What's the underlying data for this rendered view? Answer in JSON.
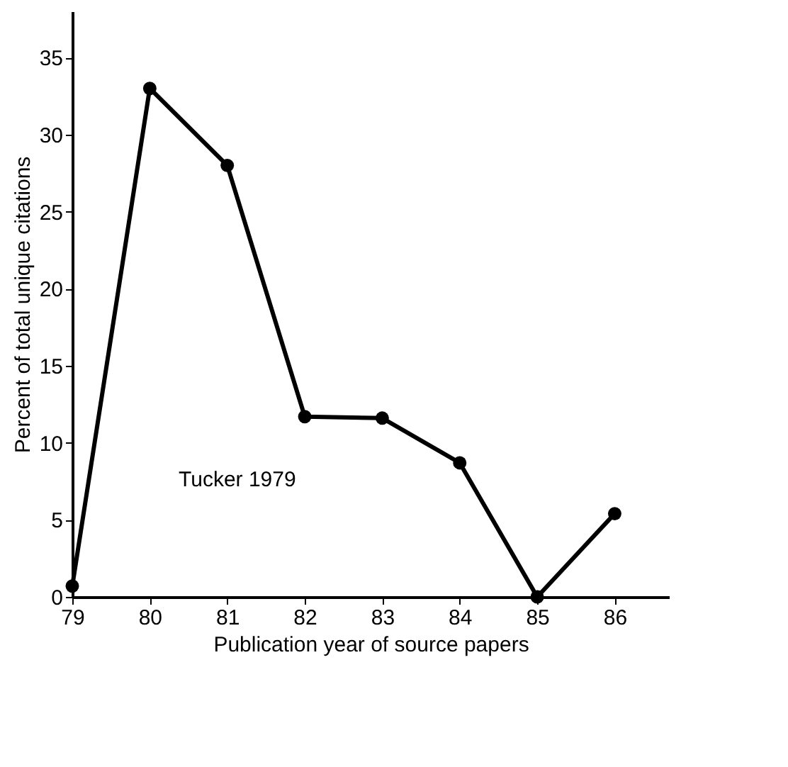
{
  "chart_data": {
    "type": "line",
    "x": [
      79,
      80,
      81,
      82,
      83,
      84,
      85,
      86
    ],
    "series": [
      {
        "color": "#000000",
        "values": [
          0.7,
          33,
          28,
          11.7,
          11.6,
          8.7,
          0,
          5.4
        ]
      }
    ],
    "xlabel": "Publication year of source papers",
    "ylabel": "Percent of total unique citations",
    "xlim": [
      79,
      86.7
    ],
    "ylim": [
      0,
      38
    ],
    "xticks": [
      79,
      80,
      81,
      82,
      83,
      84,
      85,
      86
    ],
    "yticks": [
      0,
      5,
      10,
      15,
      20,
      25,
      30,
      35
    ],
    "annotations": [
      "Tucker 1979"
    ],
    "grid": false,
    "marker": "circle",
    "line_style": "solid"
  }
}
